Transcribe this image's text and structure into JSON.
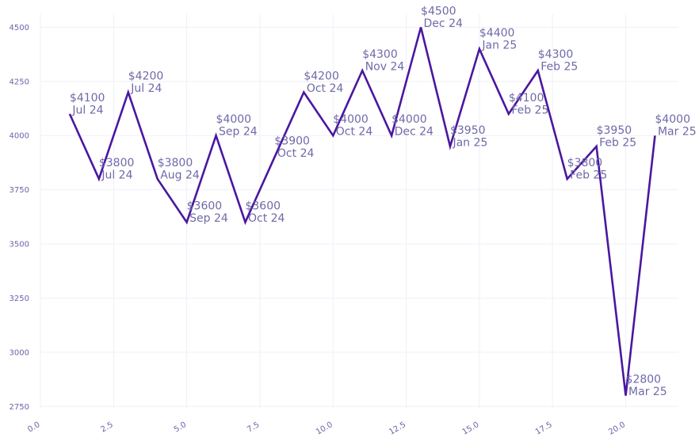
{
  "chart_data": {
    "type": "line",
    "title": "",
    "xlabel": "",
    "ylabel": "",
    "xlim": [
      0,
      21.8
    ],
    "ylim": [
      2740,
      4560
    ],
    "grid": true,
    "x_ticks": [
      0,
      2.5,
      5,
      7.5,
      10,
      12.5,
      15,
      17.5,
      20
    ],
    "x_tick_labels": [
      "0.0",
      "2.5",
      "5.0",
      "7.5",
      "10.0",
      "12.5",
      "15.0",
      "17.5",
      "20.0"
    ],
    "y_ticks": [
      2750,
      3000,
      3250,
      3500,
      3750,
      4000,
      4250,
      4500
    ],
    "y_tick_labels": [
      "2750",
      "3000",
      "3250",
      "3500",
      "3750",
      "4000",
      "4250",
      "4500"
    ],
    "colors": {
      "line": "#4a17a0",
      "label": "#6f6aa8",
      "grid": "#f1eff8",
      "tick": "#6b63a8"
    },
    "series": [
      {
        "x": [
          1,
          2,
          3,
          4,
          5,
          6,
          7,
          8,
          9,
          10,
          11,
          12,
          13,
          14,
          15,
          16,
          17,
          18,
          19,
          20,
          21
        ],
        "values": [
          4100,
          3800,
          4200,
          3800,
          3600,
          4000,
          3600,
          3900,
          4200,
          4000,
          4300,
          4000,
          4500,
          3950,
          4400,
          4100,
          4300,
          3800,
          3950,
          2800,
          4000
        ],
        "labels": [
          [
            "$4100",
            "Jul 24"
          ],
          [
            "$3800",
            "Jul 24"
          ],
          [
            "$4200",
            "Jul 24"
          ],
          [
            "$3800",
            "Aug 24"
          ],
          [
            "$3600",
            "Sep 24"
          ],
          [
            "$4000",
            "Sep 24"
          ],
          [
            "$3600",
            "Oct 24"
          ],
          [
            "$3900",
            "Oct 24"
          ],
          [
            "$4200",
            "Oct 24"
          ],
          [
            "$4000",
            "Oct 24"
          ],
          [
            "$4300",
            "Nov 24"
          ],
          [
            "$4000",
            "Dec 24"
          ],
          [
            "$4500",
            "Dec 24"
          ],
          [
            "$3950",
            "Jan 25"
          ],
          [
            "$4400",
            "Jan 25"
          ],
          [
            "$4100",
            "Feb 25"
          ],
          [
            "$4300",
            "Feb 25"
          ],
          [
            "$3800",
            "Feb 25"
          ],
          [
            "$3950",
            "Feb 25"
          ],
          [
            "$2800",
            "Mar 25"
          ],
          [
            "$4000",
            "Mar 25"
          ]
        ]
      }
    ]
  }
}
